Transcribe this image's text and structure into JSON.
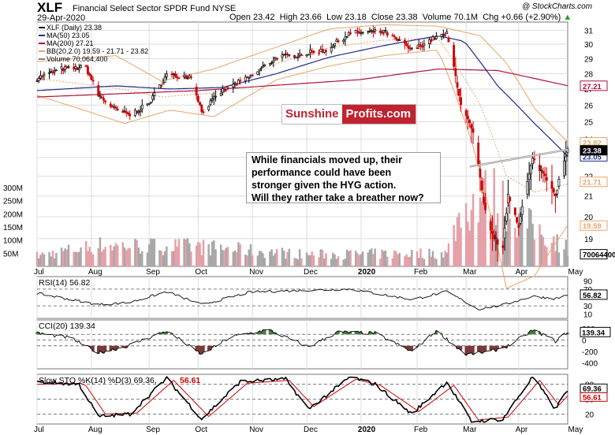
{
  "header": {
    "ticker": "XLF",
    "fund_name": "Financial Select Sector SPDR Fund",
    "exchange": "NYSE",
    "date": "29-Apr-2020",
    "open_label": "Open",
    "open": "23.42",
    "high_label": "High",
    "high": "23.66",
    "low_label": "Low",
    "low": "23.18",
    "close_label": "Close",
    "close": "23.38",
    "volume_label": "Volume",
    "volume": "70.1M",
    "chg_label": "Chg",
    "chg": "+0.66 (+2.90%)",
    "chg_arrow": "▲",
    "brand": "@ StockCharts.com"
  },
  "annotation": {
    "logo_left": "Sunshine",
    "logo_right": "Profits.com",
    "lines": [
      "While financials moved up, their",
      "performance could have been",
      "stronger given the HYG action.",
      "Will they rather take a breather now?"
    ]
  },
  "colors": {
    "up_candle": "#000000",
    "down_candle": "#cc0000",
    "ma50": "#1f2a8c",
    "ma200": "#b0103a",
    "bollinger": "#e7a46a",
    "volume_up": "#a8a8a8",
    "volume_down": "#e6a0a8",
    "positive_fill": "#4a7a45",
    "negative_fill": "#7a3a3a",
    "stoch_k": "#000000",
    "stoch_d": "#cc0000",
    "grid": "#dddddd"
  },
  "chart_data": {
    "type": "candlestick",
    "start_date": "2019-07-01",
    "end_date": "2020-04-29",
    "x_tick_labels": [
      "Jul",
      "Aug",
      "Sep",
      "Oct",
      "Nov",
      "Dec",
      "2020",
      "Feb",
      "Mar",
      "Apr",
      "May"
    ],
    "x_tick_dates": [
      "2019-07-01",
      "2019-08-01",
      "2019-09-03",
      "2019-10-01",
      "2019-11-01",
      "2019-12-02",
      "2020-01-02",
      "2020-02-03",
      "2020-03-02",
      "2020-04-01",
      "2020-05-01"
    ],
    "price": {
      "scale": "log",
      "ylim": [
        17.8,
        31.6
      ],
      "y_ticks": [
        19,
        20,
        21,
        22,
        23,
        24,
        25,
        26,
        27,
        28,
        29,
        30,
        31
      ],
      "legend": [
        {
          "label": "XLF (Daily) 23.38",
          "color": "#000000"
        },
        {
          "label": "MA(50) 23.05",
          "color": "#1f2a8c"
        },
        {
          "label": "MA(200) 27.21",
          "color": "#b0103a"
        },
        {
          "label": "BB(20,2.0) 19.59 - 21.71 - 23.82",
          "color": "#e7a46a"
        },
        {
          "label": "Volume 70,064,400",
          "color": "#808080"
        }
      ],
      "right_tags": [
        {
          "label": "27.21",
          "value": 27.21,
          "color": "#b0103a"
        },
        {
          "label": "23.82",
          "value": 23.82,
          "color": "#e7a46a"
        },
        {
          "label": "23.05",
          "value": 23.05,
          "color": "#1f2a8c"
        },
        {
          "label": "23.38",
          "value": 23.38,
          "color": "#000000"
        },
        {
          "label": "21.71",
          "value": 21.71,
          "color": "#e7a46a"
        },
        {
          "label": "19.59",
          "value": 19.59,
          "color": "#e7a46a"
        },
        {
          "label": "70064400",
          "value": 70064400,
          "color": "#000000"
        }
      ],
      "close_path": [
        [
          "2019-07-01",
          27.7
        ],
        [
          "2019-07-15",
          28.3
        ],
        [
          "2019-07-29",
          28.4
        ],
        [
          "2019-08-05",
          26.6
        ],
        [
          "2019-08-15",
          25.7
        ],
        [
          "2019-08-23",
          25.4
        ],
        [
          "2019-09-03",
          26.1
        ],
        [
          "2019-09-13",
          27.9
        ],
        [
          "2019-09-27",
          27.8
        ],
        [
          "2019-10-03",
          25.6
        ],
        [
          "2019-10-15",
          26.9
        ],
        [
          "2019-10-31",
          27.8
        ],
        [
          "2019-11-15",
          29.1
        ],
        [
          "2019-11-29",
          29.3
        ],
        [
          "2019-12-13",
          29.6
        ],
        [
          "2019-12-27",
          30.8
        ],
        [
          "2020-01-15",
          30.9
        ],
        [
          "2020-01-31",
          29.6
        ],
        [
          "2020-02-14",
          30.5
        ],
        [
          "2020-02-20",
          30.7
        ],
        [
          "2020-02-28",
          26.1
        ],
        [
          "2020-03-06",
          24.3
        ],
        [
          "2020-03-12",
          20.6
        ],
        [
          "2020-03-16",
          19.3
        ],
        [
          "2020-03-23",
          18.5
        ],
        [
          "2020-03-26",
          21.1
        ],
        [
          "2020-04-01",
          19.6
        ],
        [
          "2020-04-09",
          22.9
        ],
        [
          "2020-04-17",
          21.9
        ],
        [
          "2020-04-22",
          21.1
        ],
        [
          "2020-04-29",
          23.38
        ]
      ],
      "ma50_path": [
        [
          "2019-07-01",
          26.9
        ],
        [
          "2019-08-15",
          27.2
        ],
        [
          "2019-09-15",
          27.0
        ],
        [
          "2019-10-15",
          27.1
        ],
        [
          "2019-11-15",
          28.0
        ],
        [
          "2019-12-15",
          29.1
        ],
        [
          "2020-01-15",
          29.9
        ],
        [
          "2020-02-15",
          30.6
        ],
        [
          "2020-03-01",
          30.2
        ],
        [
          "2020-03-20",
          27.2
        ],
        [
          "2020-04-10",
          24.9
        ],
        [
          "2020-04-29",
          23.05
        ]
      ],
      "ma200_path": [
        [
          "2019-07-01",
          26.5
        ],
        [
          "2019-10-01",
          26.9
        ],
        [
          "2020-01-01",
          27.6
        ],
        [
          "2020-02-15",
          28.3
        ],
        [
          "2020-03-20",
          28.2
        ],
        [
          "2020-04-29",
          27.21
        ]
      ],
      "bb_upper_path": [
        [
          "2019-07-01",
          28.8
        ],
        [
          "2019-08-15",
          29.2
        ],
        [
          "2019-09-10",
          27.5
        ],
        [
          "2019-10-10",
          28.3
        ],
        [
          "2019-11-15",
          29.8
        ],
        [
          "2019-12-15",
          31.1
        ],
        [
          "2020-01-15",
          31.4
        ],
        [
          "2020-02-15",
          31.3
        ],
        [
          "2020-03-10",
          30.6
        ],
        [
          "2020-03-25",
          28.7
        ],
        [
          "2020-04-10",
          25.8
        ],
        [
          "2020-04-29",
          23.82
        ]
      ],
      "bb_lower_path": [
        [
          "2019-07-01",
          26.6
        ],
        [
          "2019-08-20",
          24.9
        ],
        [
          "2019-09-15",
          25.7
        ],
        [
          "2019-10-10",
          25.3
        ],
        [
          "2019-11-15",
          27.6
        ],
        [
          "2019-12-15",
          28.5
        ],
        [
          "2020-01-15",
          29.2
        ],
        [
          "2020-02-15",
          29.6
        ],
        [
          "2020-03-05",
          23.9
        ],
        [
          "2020-03-25",
          16.9
        ],
        [
          "2020-04-10",
          17.4
        ],
        [
          "2020-04-29",
          19.59
        ]
      ],
      "trendline": [
        [
          "2020-03-04",
          22.5
        ],
        [
          "2020-04-29",
          23.42
        ]
      ]
    },
    "volume": {
      "y_ticks": [
        50000000,
        100000000,
        150000000,
        200000000,
        250000000,
        300000000
      ],
      "y_tick_labels": [
        "50M",
        "100M",
        "150M",
        "200M",
        "250M",
        "300M"
      ],
      "baseline": 35000000,
      "spike_path": [
        [
          "2019-07-01",
          40000000
        ],
        [
          "2019-08-05",
          80000000
        ],
        [
          "2019-10-01",
          75000000
        ],
        [
          "2019-12-01",
          45000000
        ],
        [
          "2020-02-20",
          50000000
        ],
        [
          "2020-02-27",
          190000000
        ],
        [
          "2020-03-09",
          260000000
        ],
        [
          "2020-03-16",
          275000000
        ],
        [
          "2020-03-23",
          245000000
        ],
        [
          "2020-04-01",
          180000000
        ],
        [
          "2020-04-15",
          125000000
        ],
        [
          "2020-04-29",
          70064400
        ]
      ]
    },
    "rsi": {
      "label": "RSI(14) 56.82",
      "ylim": [
        0,
        100
      ],
      "y_ticks": [
        10,
        30,
        50,
        70,
        90
      ],
      "y_tick_labels": [
        "10",
        "30",
        "",
        "70",
        "90"
      ],
      "last_label": "56.82",
      "path": [
        [
          "2019-07-01",
          60
        ],
        [
          "2019-08-05",
          33
        ],
        [
          "2019-08-23",
          38
        ],
        [
          "2019-09-13",
          64
        ],
        [
          "2019-10-03",
          33
        ],
        [
          "2019-10-31",
          63
        ],
        [
          "2019-11-29",
          67
        ],
        [
          "2019-12-27",
          70
        ],
        [
          "2020-01-31",
          45
        ],
        [
          "2020-02-20",
          64
        ],
        [
          "2020-03-09",
          22
        ],
        [
          "2020-03-23",
          32
        ],
        [
          "2020-04-09",
          53
        ],
        [
          "2020-04-22",
          47
        ],
        [
          "2020-04-29",
          56.82
        ]
      ]
    },
    "cci": {
      "label": "CCI(20) 139.34",
      "ylim": [
        -500,
        350
      ],
      "y_ticks": [
        200,
        100,
        0,
        -100,
        -200,
        -400
      ],
      "y_tick_labels": [
        "200",
        "",
        "0",
        "",
        "-200",
        "-400"
      ],
      "last_label": "139.34",
      "path": [
        [
          "2019-07-01",
          120
        ],
        [
          "2019-07-20",
          40
        ],
        [
          "2019-08-05",
          -220
        ],
        [
          "2019-08-20",
          -120
        ],
        [
          "2019-09-13",
          160
        ],
        [
          "2019-10-03",
          -250
        ],
        [
          "2019-10-20",
          60
        ],
        [
          "2019-11-10",
          180
        ],
        [
          "2019-12-03",
          -120
        ],
        [
          "2019-12-20",
          140
        ],
        [
          "2020-01-10",
          120
        ],
        [
          "2020-01-31",
          -200
        ],
        [
          "2020-02-14",
          160
        ],
        [
          "2020-03-02",
          -250
        ],
        [
          "2020-03-16",
          -200
        ],
        [
          "2020-03-26",
          -100
        ],
        [
          "2020-04-09",
          170
        ],
        [
          "2020-04-17",
          70
        ],
        [
          "2020-04-22",
          -20
        ],
        [
          "2020-04-29",
          139.34
        ]
      ]
    },
    "stochastic": {
      "label_k": "Slow STO %K(14) %D(3) 69.36,",
      "label_d": "56.61",
      "ylim": [
        0,
        100
      ],
      "y_ticks": [
        20,
        50,
        80
      ],
      "y_tick_labels": [
        "20",
        "50",
        "80"
      ],
      "last_label_k": "69.36",
      "last_label_d": "56.61",
      "k_path": [
        [
          "2019-07-01",
          85
        ],
        [
          "2019-07-25",
          80
        ],
        [
          "2019-08-05",
          15
        ],
        [
          "2019-08-23",
          20
        ],
        [
          "2019-09-13",
          92
        ],
        [
          "2019-10-03",
          10
        ],
        [
          "2019-10-25",
          85
        ],
        [
          "2019-11-20",
          90
        ],
        [
          "2019-12-03",
          30
        ],
        [
          "2019-12-27",
          95
        ],
        [
          "2020-01-10",
          80
        ],
        [
          "2020-01-31",
          20
        ],
        [
          "2020-02-20",
          85
        ],
        [
          "2020-03-05",
          5
        ],
        [
          "2020-03-23",
          10
        ],
        [
          "2020-04-09",
          95
        ],
        [
          "2020-04-22",
          30
        ],
        [
          "2020-04-29",
          69.36
        ]
      ],
      "d_path": [
        [
          "2019-07-01",
          80
        ],
        [
          "2019-07-28",
          82
        ],
        [
          "2019-08-09",
          20
        ],
        [
          "2019-08-27",
          22
        ],
        [
          "2019-09-17",
          88
        ],
        [
          "2019-10-07",
          15
        ],
        [
          "2019-10-29",
          82
        ],
        [
          "2019-11-22",
          88
        ],
        [
          "2019-12-06",
          35
        ],
        [
          "2019-12-30",
          90
        ],
        [
          "2020-01-13",
          78
        ],
        [
          "2020-02-04",
          25
        ],
        [
          "2020-02-24",
          78
        ],
        [
          "2020-03-09",
          8
        ],
        [
          "2020-03-26",
          14
        ],
        [
          "2020-04-13",
          88
        ],
        [
          "2020-04-24",
          38
        ],
        [
          "2020-04-29",
          56.61
        ]
      ]
    }
  }
}
